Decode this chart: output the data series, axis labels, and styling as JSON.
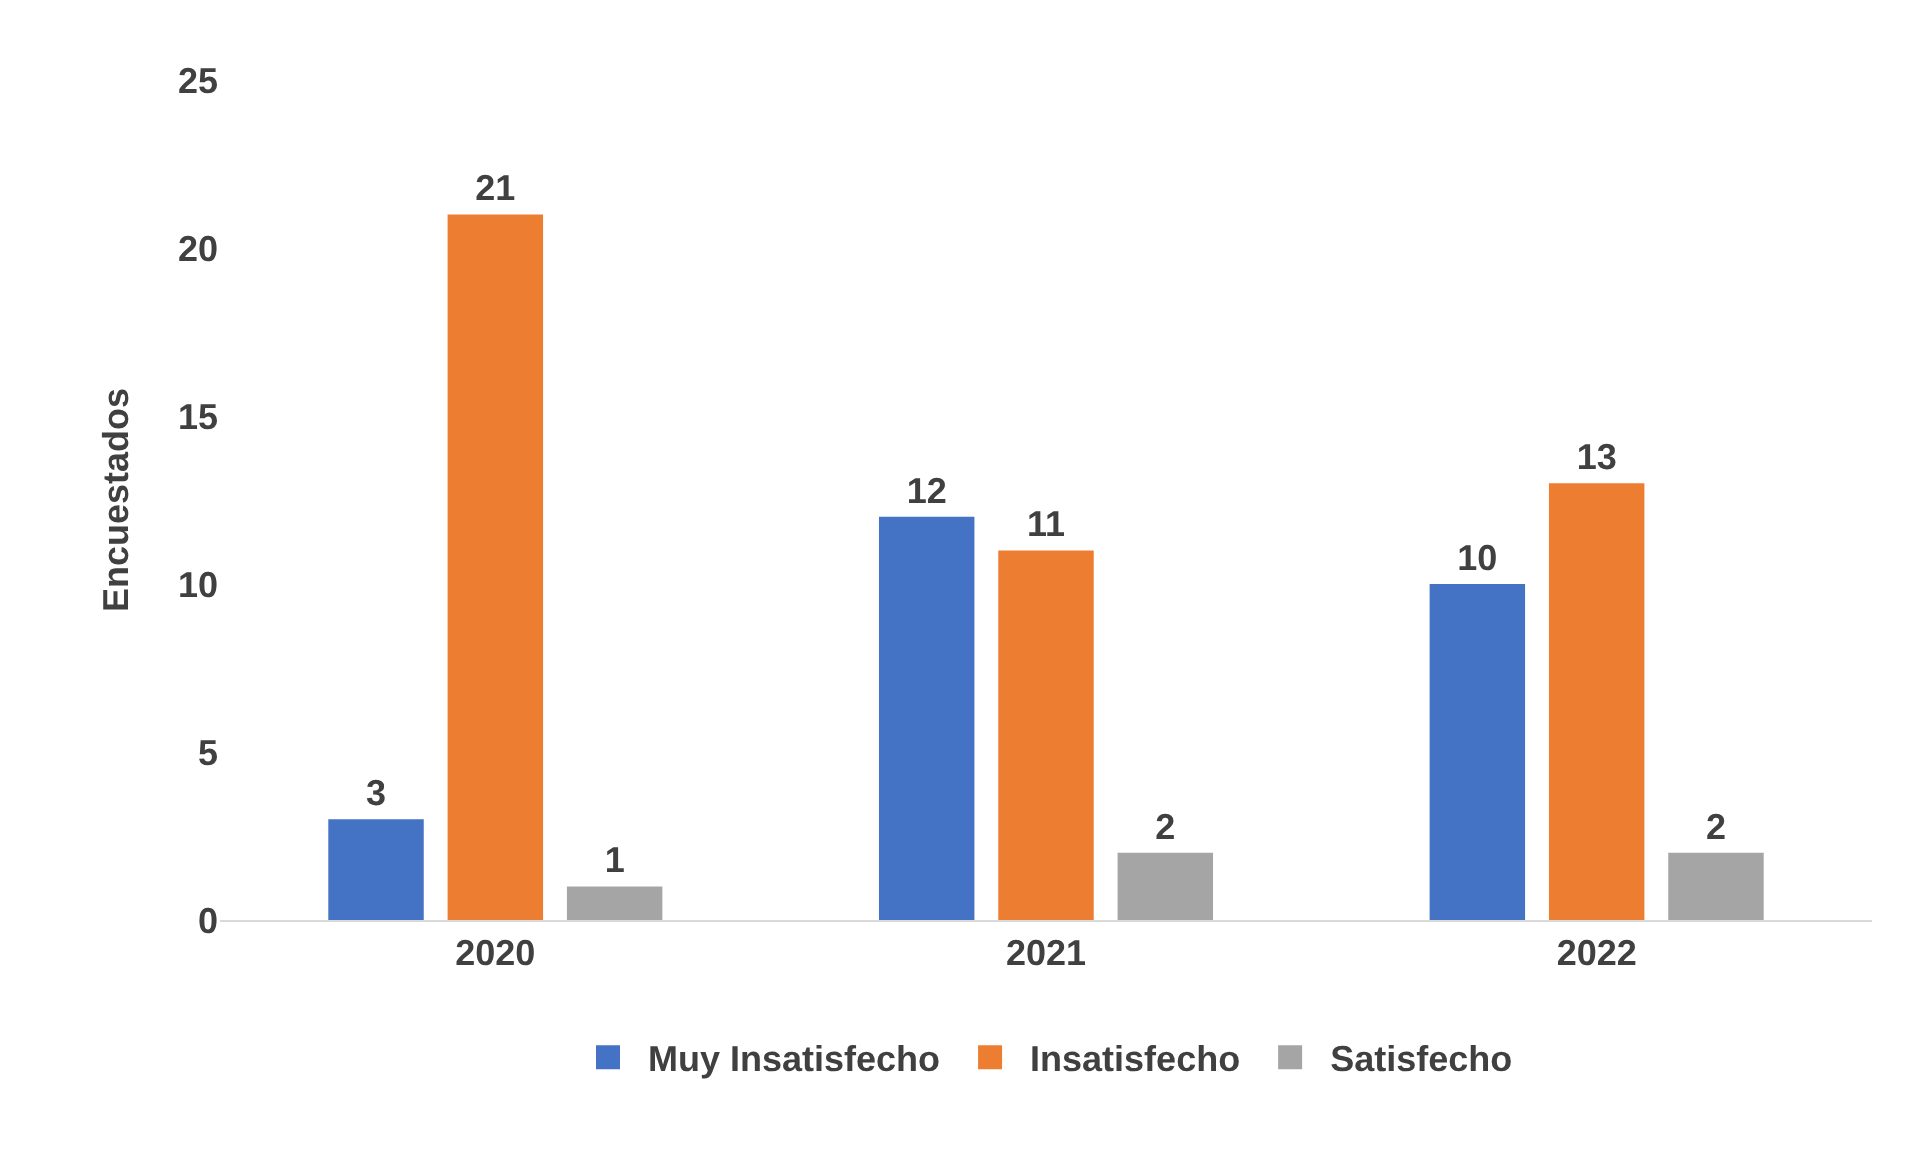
{
  "chart_data": {
    "type": "bar",
    "ylabel": "Encuestados",
    "categories": [
      "2020",
      "2021",
      "2022"
    ],
    "series": [
      {
        "name": "Muy Insatisfecho",
        "color": "#4472c4",
        "values": [
          3,
          12,
          10
        ]
      },
      {
        "name": "Insatisfecho",
        "color": "#ed7d31",
        "values": [
          21,
          11,
          13
        ]
      },
      {
        "name": "Satisfecho",
        "color": "#a5a5a5",
        "values": [
          1,
          2,
          2
        ]
      }
    ],
    "ylim": [
      0,
      25
    ],
    "yticks": [
      0,
      5,
      10,
      15,
      20,
      25
    ],
    "grid": false,
    "legend": "bottom",
    "data_labels": true
  }
}
